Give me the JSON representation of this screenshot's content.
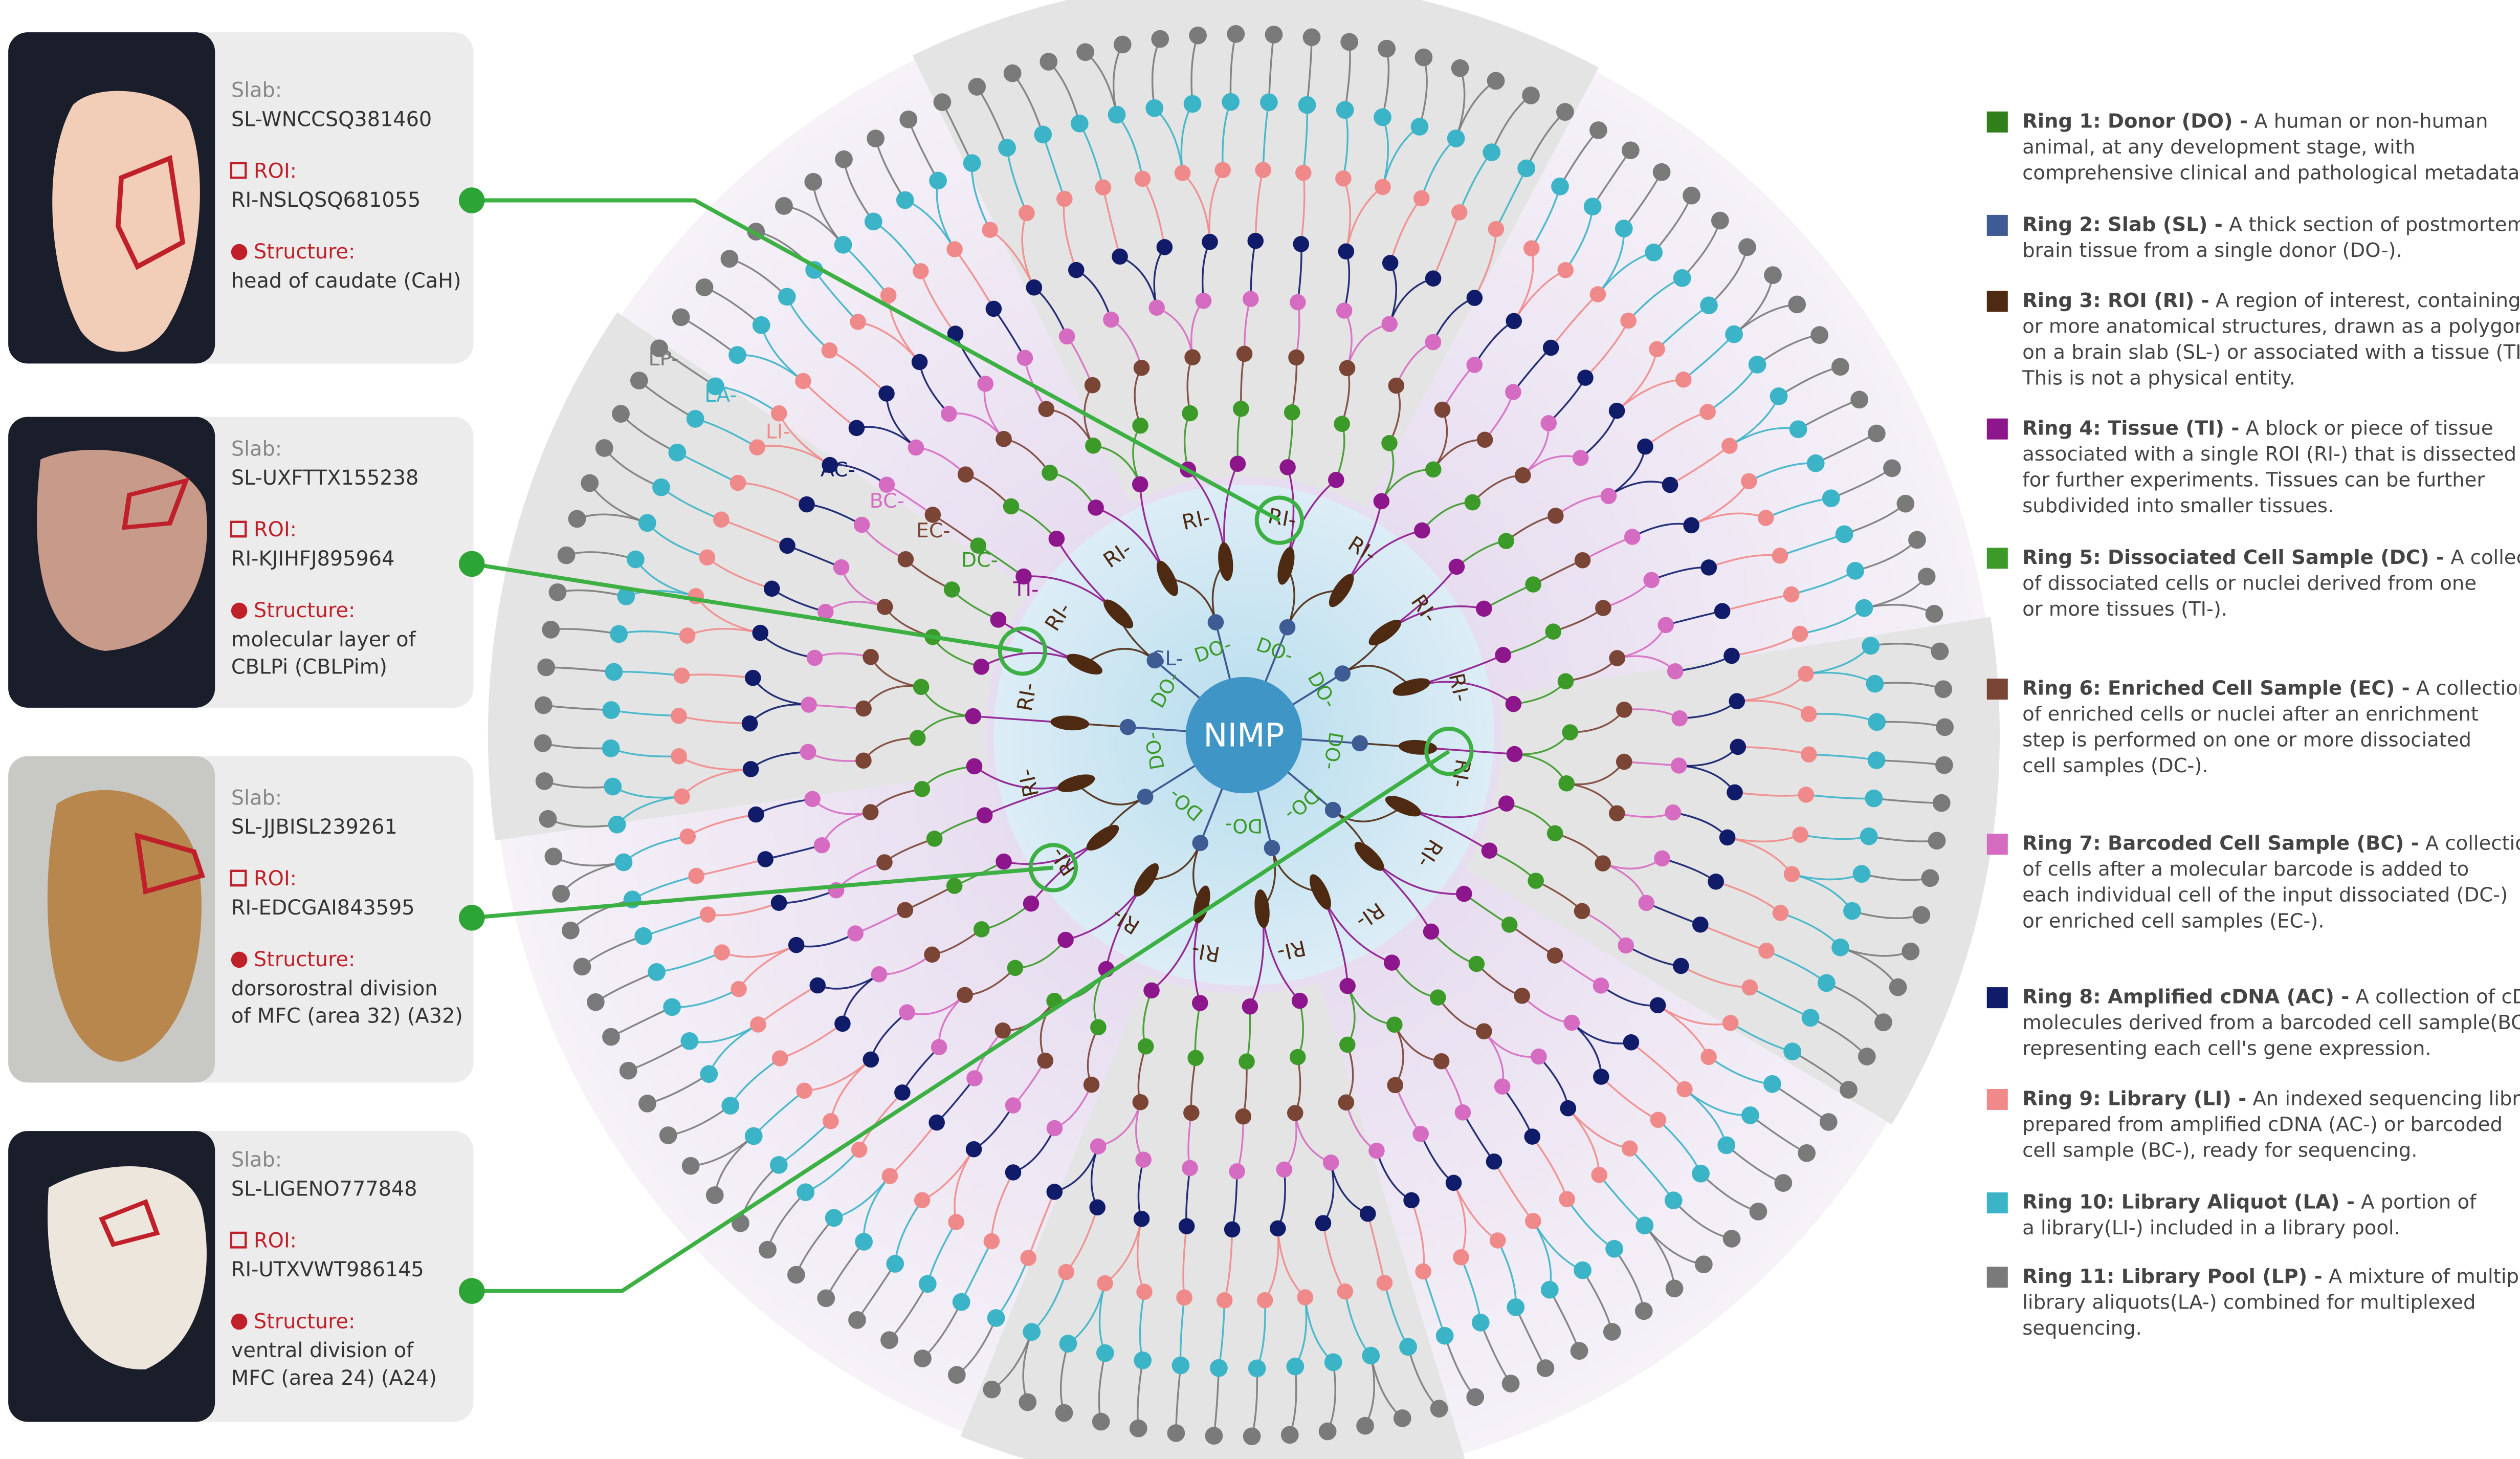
{
  "panels": [
    {
      "slab_label": "Slab:",
      "slab": "SL-WNCCSQ381460",
      "roi_label": "ROI:",
      "roi": "RI-NSLQSQ681055",
      "structure_label": "Structure:",
      "structure": [
        "head of caudate (CaH)"
      ]
    },
    {
      "slab_label": "Slab:",
      "slab": "SL-UXFTTX155238",
      "roi_label": "ROI:",
      "roi": "RI-KJIHFJ895964",
      "structure_label": "Structure:",
      "structure": [
        "molecular layer of",
        "CBLPi (CBLPim)"
      ]
    },
    {
      "slab_label": "Slab:",
      "slab": "SL-JJBISL239261",
      "roi_label": "ROI:",
      "roi": "RI-EDCGAI843595",
      "structure_label": "Structure:",
      "structure": [
        "dorsorostral division",
        "of MFC (area 32) (A32)"
      ]
    },
    {
      "slab_label": "Slab:",
      "slab": "SL-LIGENO777848",
      "roi_label": "ROI:",
      "roi": "RI-UTXVWT986145",
      "structure_label": "Structure:",
      "structure": [
        "ventral division of",
        "MFC (area 24) (A24)"
      ]
    }
  ],
  "hub": {
    "center": "NIMP",
    "ri_labels": [
      "RI-",
      "RI-",
      "RI-",
      "RI-",
      "RI-",
      "RI-",
      "RI-",
      "RI-",
      "RI-",
      "RI-",
      "RI-",
      "RI-",
      "RI-",
      "RI-",
      "RI-",
      "RI-"
    ],
    "do_labels": [
      "DO-",
      "DO-",
      "DO-",
      "DO-",
      "DO-",
      "DO-",
      "DO-",
      "DO-",
      "DO-"
    ],
    "ring_labels": [
      "SL-",
      "TI-",
      "DC-",
      "EC-",
      "BC-",
      "AC-",
      "LI-",
      "LA-",
      "LP-"
    ]
  },
  "legend": [
    {
      "color": "#2f7f1a",
      "title": "Ring 1: Donor (DO) -",
      "lines": [
        "A human or non-human",
        "animal, at any development stage, with",
        "comprehensive clinical and pathological metadata."
      ]
    },
    {
      "color": "#3f5b94",
      "title": "Ring 2: Slab (SL) -",
      "lines": [
        "A thick section of postmortem",
        "brain tissue from a single donor (DO-)."
      ]
    },
    {
      "color": "#4f2a12",
      "title": "Ring 3: ROI (RI) -",
      "lines": [
        "A region of interest, containing one",
        "or more anatomical structures, drawn as a polygon",
        "on a brain slab (SL-) or associated with a tissue (TI-).",
        "This is not a physical entity."
      ]
    },
    {
      "color": "#8d168d",
      "title": "Ring 4: Tissue (TI) -",
      "lines": [
        "A block or piece of tissue",
        "associated with a single ROI (RI-) that is dissected",
        "for further experiments. Tissues can be further",
        "subdivided into smaller tissues."
      ]
    },
    {
      "color": "#3c9a29",
      "title": "Ring 5: Dissociated Cell Sample (DC) -",
      "lines": [
        "A collection",
        "of dissociated cells or nuclei derived from one",
        "or more tissues (TI-)."
      ]
    },
    {
      "color": "#7b4536",
      "title": "Ring 6: Enriched Cell Sample (EC) -",
      "lines": [
        "A collection",
        "of enriched cells or nuclei after an enrichment",
        "step is performed on one or more dissociated",
        "cell samples (DC-)."
      ]
    },
    {
      "color": "#d66cc2",
      "title": "Ring 7: Barcoded Cell Sample (BC) -",
      "lines": [
        "A collection",
        "of cells after a molecular barcode is added to",
        "each individual cell of the input dissociated (DC-)",
        "or enriched cell samples (EC-)."
      ]
    },
    {
      "color": "#101c6a",
      "title": "Ring 8: Amplified cDNA (AC) -",
      "lines": [
        "A collection of cDNA",
        "molecules derived from a barcoded cell sample(BC-),",
        "representing each cell's gene expression."
      ]
    },
    {
      "color": "#f08a8a",
      "title": "Ring 9: Library (LI) -",
      "lines": [
        "An indexed sequencing library",
        "prepared from amplified cDNA (AC-) or barcoded",
        "cell sample (BC-), ready for sequencing."
      ]
    },
    {
      "color": "#3cb4c8",
      "title": "Ring 10: Library Aliquot (LA) -",
      "lines": [
        "A portion of",
        "a library(LI-) included in a library pool."
      ]
    },
    {
      "color": "#7a7a7a",
      "title": "Ring 11: Library Pool (LP) -",
      "lines": [
        "A mixture of multiple",
        "library aliquots(LA-) combined for multiplexed",
        "sequencing."
      ]
    }
  ]
}
